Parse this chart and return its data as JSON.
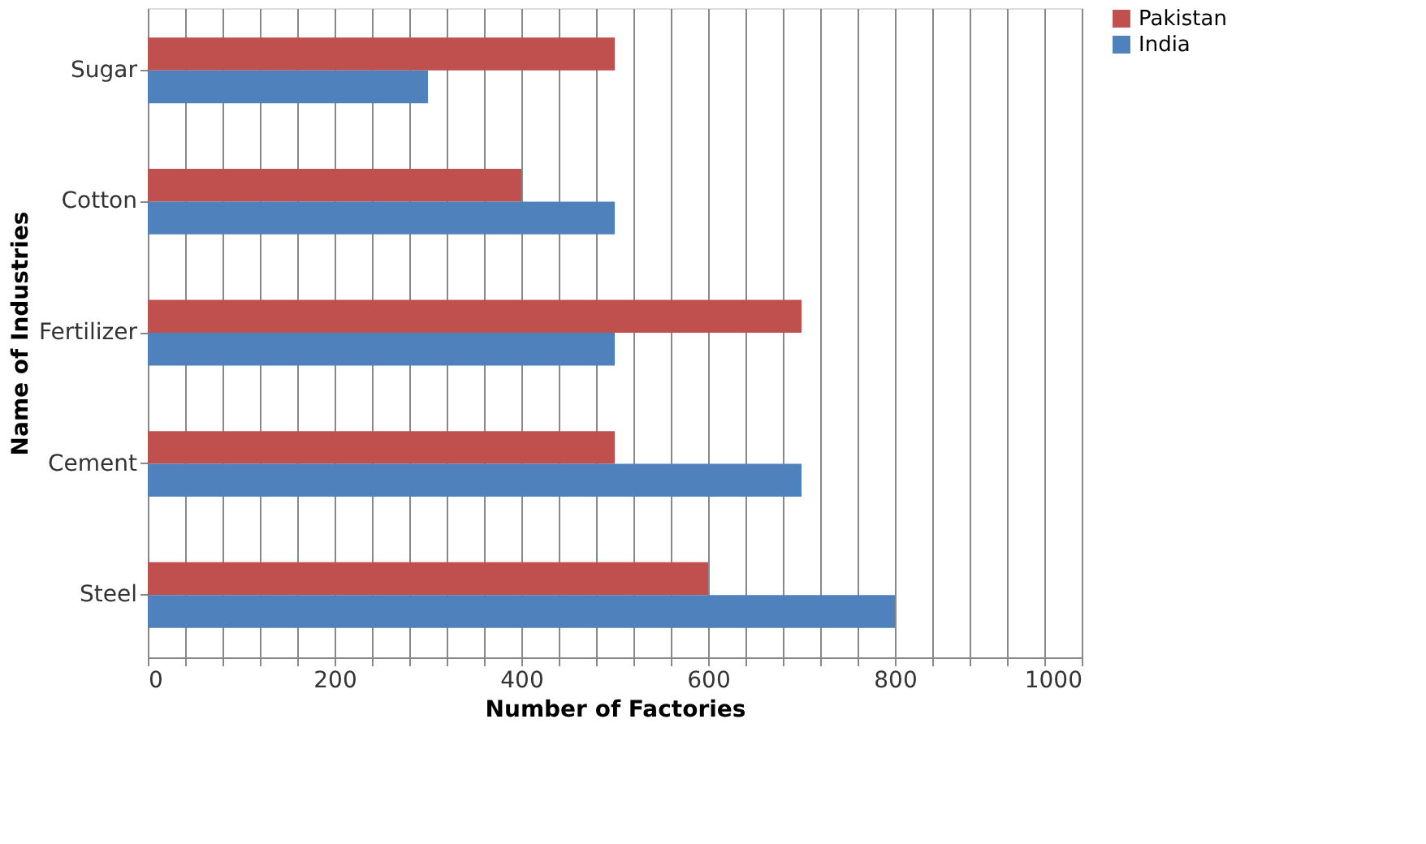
{
  "chart_data": {
    "type": "bar",
    "orientation": "horizontal",
    "xlabel": "Number of Factories",
    "ylabel": "Name of Industries",
    "categories": [
      "Sugar",
      "Cotton",
      "Fertilizer",
      "Cement",
      "Steel"
    ],
    "series": [
      {
        "name": "Pakistan",
        "color": "#c0504d",
        "values": [
          500,
          400,
          700,
          500,
          600
        ]
      },
      {
        "name": "India",
        "color": "#4f81bd",
        "values": [
          300,
          500,
          500,
          700,
          800
        ]
      }
    ],
    "xlim": [
      0,
      1000
    ],
    "xticks": [
      0,
      {
        "value": 40,
        "label": null
      },
      {
        "value": 80,
        "label": null
      },
      {
        "value": 120,
        "label": null
      },
      {
        "value": 160,
        "label": null
      },
      200,
      {
        "value": 240,
        "label": null
      },
      {
        "value": 280,
        "label": null
      },
      {
        "value": 320,
        "label": null
      },
      {
        "value": 360,
        "label": null
      },
      400,
      {
        "value": 440,
        "label": null
      },
      {
        "value": 480,
        "label": null
      },
      {
        "value": 520,
        "label": null
      },
      {
        "value": 560,
        "label": null
      },
      600,
      {
        "value": 640,
        "label": null
      },
      {
        "value": 680,
        "label": null
      },
      {
        "value": 720,
        "label": null
      },
      {
        "value": 760,
        "label": null
      },
      800,
      {
        "value": 840,
        "label": null
      },
      {
        "value": 880,
        "label": null
      },
      {
        "value": 920,
        "label": null
      },
      {
        "value": 960,
        "label": null
      },
      1000
    ],
    "grid": "x",
    "legend": "right"
  }
}
